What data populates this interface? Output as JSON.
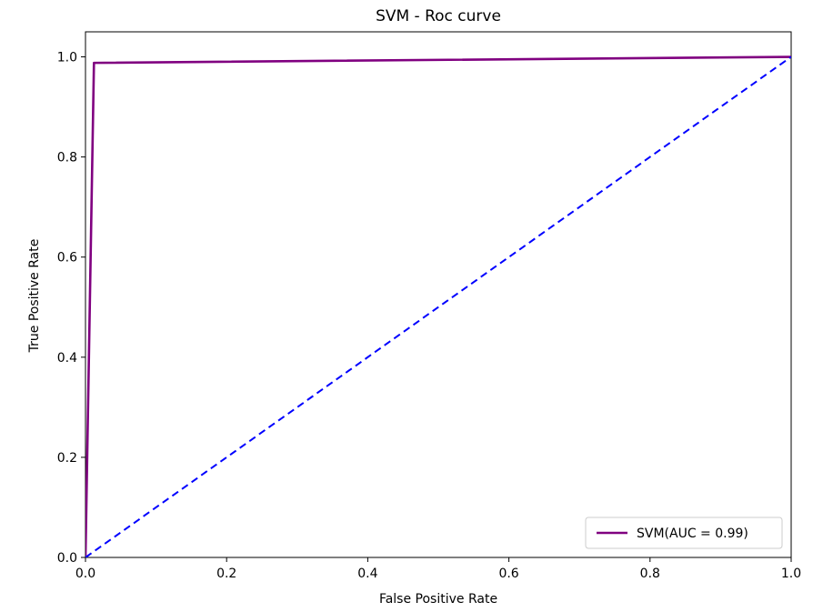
{
  "chart_data": {
    "type": "line",
    "title": "SVM - Roc curve",
    "xlabel": "False Positive Rate",
    "ylabel": "True Positive Rate",
    "xlim": [
      0.0,
      1.0
    ],
    "ylim": [
      0.0,
      1.05
    ],
    "x_ticks": [
      0.0,
      0.2,
      0.4,
      0.6,
      0.8,
      1.0
    ],
    "y_ticks": [
      0.0,
      0.2,
      0.4,
      0.6,
      0.8,
      1.0
    ],
    "x_tick_labels": [
      "0.0",
      "0.2",
      "0.4",
      "0.6",
      "0.8",
      "1.0"
    ],
    "y_tick_labels": [
      "0.0",
      "0.2",
      "0.4",
      "0.6",
      "0.8",
      "1.0"
    ],
    "grid": false,
    "legend_position": "lower-right",
    "series": [
      {
        "name": "SVM(AUC = 0.99)",
        "color": "#800080",
        "style": "solid",
        "x": [
          0.0,
          0.012,
          1.0
        ],
        "y": [
          0.0,
          0.988,
          1.0
        ]
      },
      {
        "color": "#0000ff",
        "style": "dashed",
        "x": [
          0.0,
          1.0
        ],
        "y": [
          0.0,
          1.0
        ]
      }
    ]
  }
}
